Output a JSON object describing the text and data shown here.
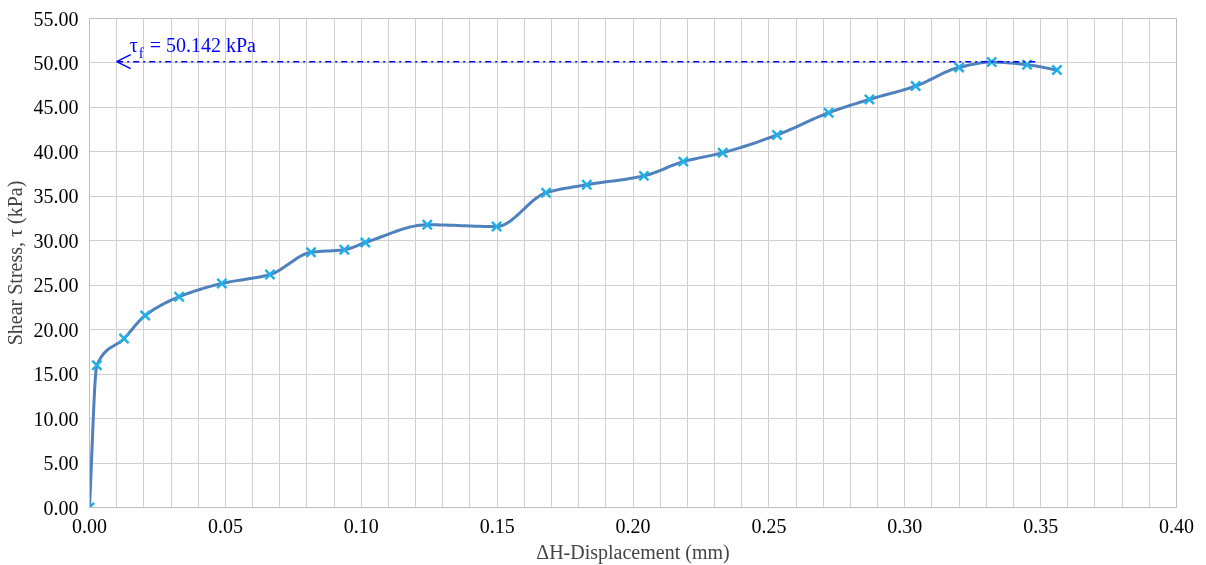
{
  "chart_data": {
    "type": "line",
    "xlabel": "ΔH-Displacement (mm)",
    "ylabel": "Shear Stress, τ (kPa)",
    "x": [
      0,
      0.0027,
      0.0127,
      0.0205,
      0.033,
      0.0487,
      0.0664,
      0.0815,
      0.0938,
      0.1015,
      0.1243,
      0.1498,
      0.168,
      0.183,
      0.204,
      0.2185,
      0.233,
      0.253,
      0.272,
      0.287,
      0.304,
      0.32,
      0.332,
      0.345,
      0.356
    ],
    "series": [
      {
        "color": "#4f81bd",
        "values": [
          0,
          16.0,
          19.0,
          21.6,
          23.7,
          25.2,
          26.2,
          28.7,
          29.0,
          29.8,
          31.8,
          31.6,
          35.4,
          36.3,
          37.3,
          38.9,
          39.9,
          41.9,
          44.4,
          45.9,
          47.4,
          49.5,
          50.1,
          49.8,
          49.2
        ],
        "colors": [
          "#1fb0e8",
          "#1fb0e8",
          "#1fb0e8",
          "#1fb0e8",
          "#1fb0e8",
          "#1fb0e8",
          "#1fb0e8",
          "#1fb0e8",
          "#1fb0e8",
          "#1fb0e8",
          "#1fb0e8",
          "#1fb0e8",
          "#1fb0e8",
          "#1fb0e8",
          "#1fb0e8",
          "#1fb0e8",
          "#1fb0e8",
          "#1fb0e8",
          "#1fb0e8",
          "#1fb0e8",
          "#1fb0e8",
          "#1fb0e8",
          "#1fb0e8",
          "#1fb0e8",
          "#1fb0e8"
        ]
      }
    ],
    "marker": "cross",
    "xlim": [
      0,
      0.4
    ],
    "xticks": [
      {
        "value": 0,
        "label": "0.00"
      },
      {
        "value": 0.05,
        "label": "0.05"
      },
      {
        "value": 0.1,
        "label": "0.10"
      },
      {
        "value": 0.15,
        "label": "0.15"
      },
      {
        "value": 0.2,
        "label": "0.20"
      },
      {
        "value": 0.25,
        "label": "0.25"
      },
      {
        "value": 0.3,
        "label": "0.30"
      },
      {
        "value": 0.35,
        "label": "0.35"
      },
      {
        "value": 0.4,
        "label": "0.40"
      }
    ],
    "ylim": [
      0,
      55
    ],
    "yticks": [
      {
        "value": 0,
        "label": "0.00"
      },
      {
        "value": 5,
        "label": "5.00"
      },
      {
        "value": 10,
        "label": "10.00"
      },
      {
        "value": 15,
        "label": "15.00"
      },
      {
        "value": 20,
        "label": "20.00"
      },
      {
        "value": 25,
        "label": "25.00"
      },
      {
        "value": 30,
        "label": "30.00"
      },
      {
        "value": 35,
        "label": "35.00"
      },
      {
        "value": 40,
        "label": "40.00"
      },
      {
        "value": 45,
        "label": "45.00"
      },
      {
        "value": 50,
        "label": "50.00"
      },
      {
        "value": 55,
        "label": "55.00"
      }
    ],
    "grid": true,
    "ref_lines": [
      {
        "axis": "y",
        "value": 50.142,
        "label": "τ$_{f}$ = 50.142 kPa",
        "color": "#0000ff",
        "line_style": "dashdot"
      }
    ]
  }
}
